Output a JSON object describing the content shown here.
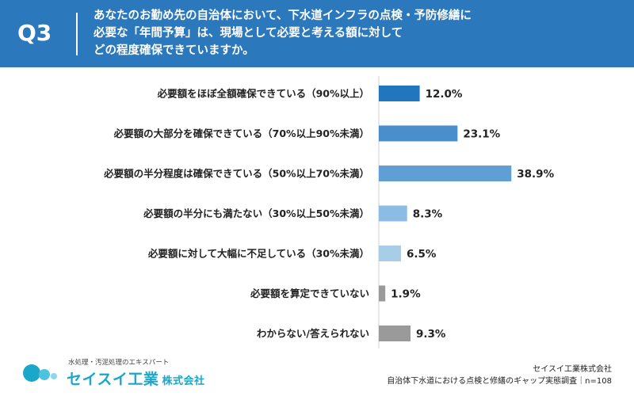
{
  "header": {
    "question_number": "Q3",
    "question_lines": [
      "あなたのお勤め先の自治体において、下水道インフラの点検・予防修繕に",
      "必要な「年間予算」は、現場として必要と考える額に対して",
      "どの程度確保できていますか。"
    ]
  },
  "chart_data": {
    "type": "bar",
    "orientation": "horizontal",
    "categories": [
      "必要額をほぼ全額確保できている（90%以上）",
      "必要額の大部分を確保できている（70%以上90%未満）",
      "必要額の半分程度は確保できている（50%以上70%未満）",
      "必要額の半分にも満たない（30%以上50%未満）",
      "必要額に対して大幅に不足している（30%未満）",
      "必要額を算定できていない",
      "わからない/答えられない"
    ],
    "values": [
      12.0,
      23.1,
      38.9,
      8.3,
      6.5,
      1.9,
      9.3
    ],
    "value_labels": [
      "12.0%",
      "23.1%",
      "38.9%",
      "8.3%",
      "6.5%",
      "1.9%",
      "9.3%"
    ],
    "bar_colors": [
      "#2176bd",
      "#4a8fcc",
      "#5f9fd6",
      "#8bbce4",
      "#a8cde9",
      "#9a9a9a",
      "#9a9a9a"
    ],
    "xlim": [
      0,
      100
    ],
    "grid": false,
    "legend": "none"
  },
  "footer": {
    "logo_tagline": "水処理・汚泥処理のエキスパート",
    "logo_name": "セイスイ工業",
    "logo_suffix": "株式会社",
    "source_lines": [
      "セイスイ工業株式会社",
      "自治体下水道における点検と修繕のギャップ実態調査｜n=108"
    ]
  },
  "colors": {
    "header_bg": "#2b78bd",
    "header_text": "#ffffff",
    "logo_accent": "#1aa7c9"
  }
}
